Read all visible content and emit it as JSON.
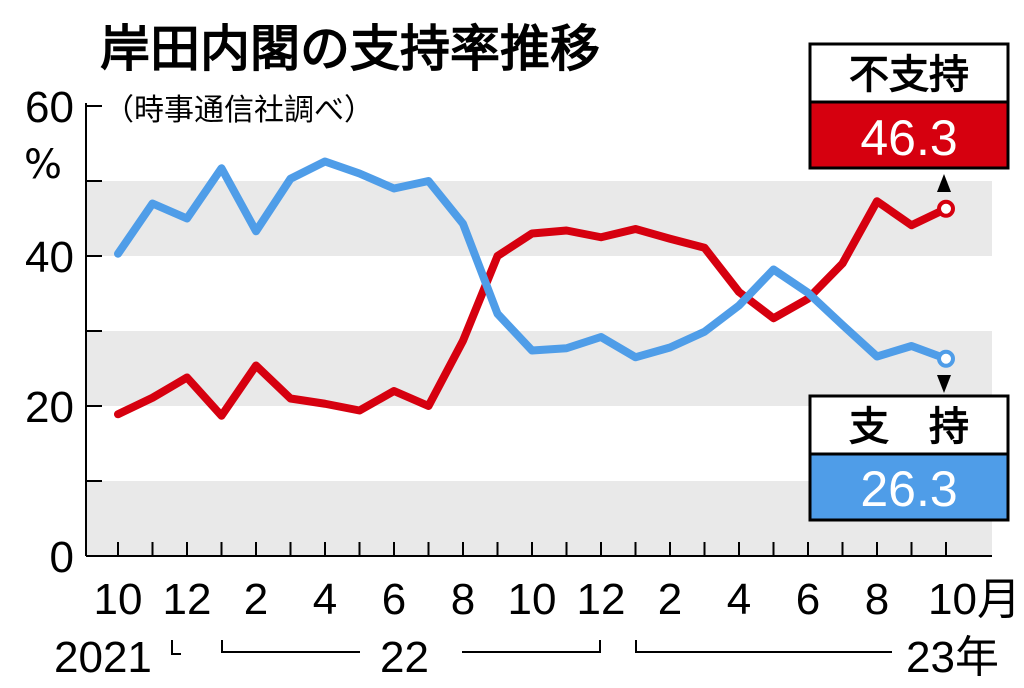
{
  "chart_data": {
    "type": "line",
    "title": "岸田内閣の支持率推移",
    "subtitle": "（時事通信社調べ）",
    "ylabel": "%",
    "ylim": [
      0,
      60
    ],
    "yticks_labeled": [
      "0",
      "20",
      "40",
      "60"
    ],
    "grid": "alternating horizontal bands every 10",
    "x": [
      "2021-10",
      "2021-11",
      "2021-12",
      "2022-01",
      "2022-02",
      "2022-03",
      "2022-04",
      "2022-05",
      "2022-06",
      "2022-07",
      "2022-08",
      "2022-09",
      "2022-10",
      "2022-11",
      "2022-12",
      "2023-01",
      "2023-02",
      "2023-03",
      "2023-04",
      "2023-05",
      "2023-06",
      "2023-07",
      "2023-08",
      "2023-09",
      "2023-10"
    ],
    "xtick_labels": [
      {
        "month": "2021-10",
        "label": "10"
      },
      {
        "month": "2021-12",
        "label": "12"
      },
      {
        "month": "2022-02",
        "label": "2"
      },
      {
        "month": "2022-04",
        "label": "4"
      },
      {
        "month": "2022-06",
        "label": "6"
      },
      {
        "month": "2022-08",
        "label": "8"
      },
      {
        "month": "2022-10",
        "label": "10"
      },
      {
        "month": "2022-12",
        "label": "12"
      },
      {
        "month": "2023-02",
        "label": "2"
      },
      {
        "month": "2023-04",
        "label": "4"
      },
      {
        "month": "2023-06",
        "label": "6"
      },
      {
        "month": "2023-08",
        "label": "8"
      },
      {
        "month": "2023-10",
        "label": "10月"
      }
    ],
    "year_labels": [
      "2021",
      "22",
      "23年"
    ],
    "series": [
      {
        "name": "支持",
        "color": "#4f9de8",
        "values": [
          40.3,
          47.0,
          45.0,
          51.7,
          43.3,
          50.3,
          52.6,
          51.0,
          49.0,
          50.0,
          44.3,
          32.3,
          27.4,
          27.7,
          29.2,
          26.5,
          27.8,
          29.9,
          33.4,
          38.2,
          35.1,
          30.8,
          26.6,
          28.0,
          26.3
        ],
        "label_title": "支　持",
        "label_value": "26.3"
      },
      {
        "name": "不支持",
        "color": "#d6000f",
        "values": [
          18.9,
          21.1,
          23.8,
          18.7,
          25.4,
          21.0,
          20.3,
          19.4,
          22.0,
          20.0,
          28.7,
          40.0,
          43.0,
          43.4,
          42.5,
          43.6,
          42.3,
          41.1,
          35.2,
          31.7,
          34.3,
          39.0,
          47.3,
          44.1,
          46.3
        ],
        "label_title": "不支持",
        "label_value": "46.3"
      }
    ]
  }
}
